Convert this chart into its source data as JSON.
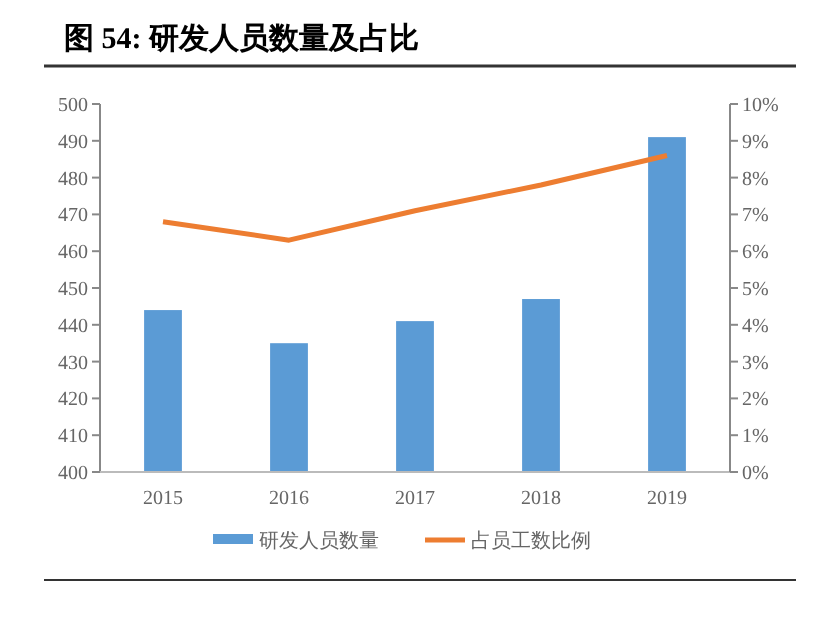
{
  "chart_data": {
    "type": "bar",
    "title": "图 54: 研发人员数量及占比",
    "categories": [
      "2015",
      "2016",
      "2017",
      "2018",
      "2019"
    ],
    "series": [
      {
        "name": "研发人员数量",
        "color": "#5b9bd5",
        "values": [
          444,
          435,
          441,
          447,
          491
        ]
      },
      {
        "name": "占员工数比例",
        "type": "line",
        "axis": "y2",
        "color": "#ed7d31",
        "values": [
          6.8,
          6.3,
          7.1,
          7.8,
          8.6
        ]
      }
    ],
    "ylim": [
      400,
      500
    ],
    "yticks": [
      400,
      410,
      420,
      430,
      440,
      450,
      460,
      470,
      480,
      490,
      500
    ],
    "y2lim": [
      0,
      10
    ],
    "y2ticks": [
      {
        "value": 0,
        "label": "0%"
      },
      {
        "value": 1,
        "label": "1%"
      },
      {
        "value": 2,
        "label": "2%"
      },
      {
        "value": 3,
        "label": "3%"
      },
      {
        "value": 4,
        "label": "4%"
      },
      {
        "value": 5,
        "label": "5%"
      },
      {
        "value": 6,
        "label": "6%"
      },
      {
        "value": 7,
        "label": "7%"
      },
      {
        "value": 8,
        "label": "8%"
      },
      {
        "value": 9,
        "label": "9%"
      },
      {
        "value": 10,
        "label": "10%"
      }
    ],
    "legend": "bottom",
    "marker": "none"
  }
}
